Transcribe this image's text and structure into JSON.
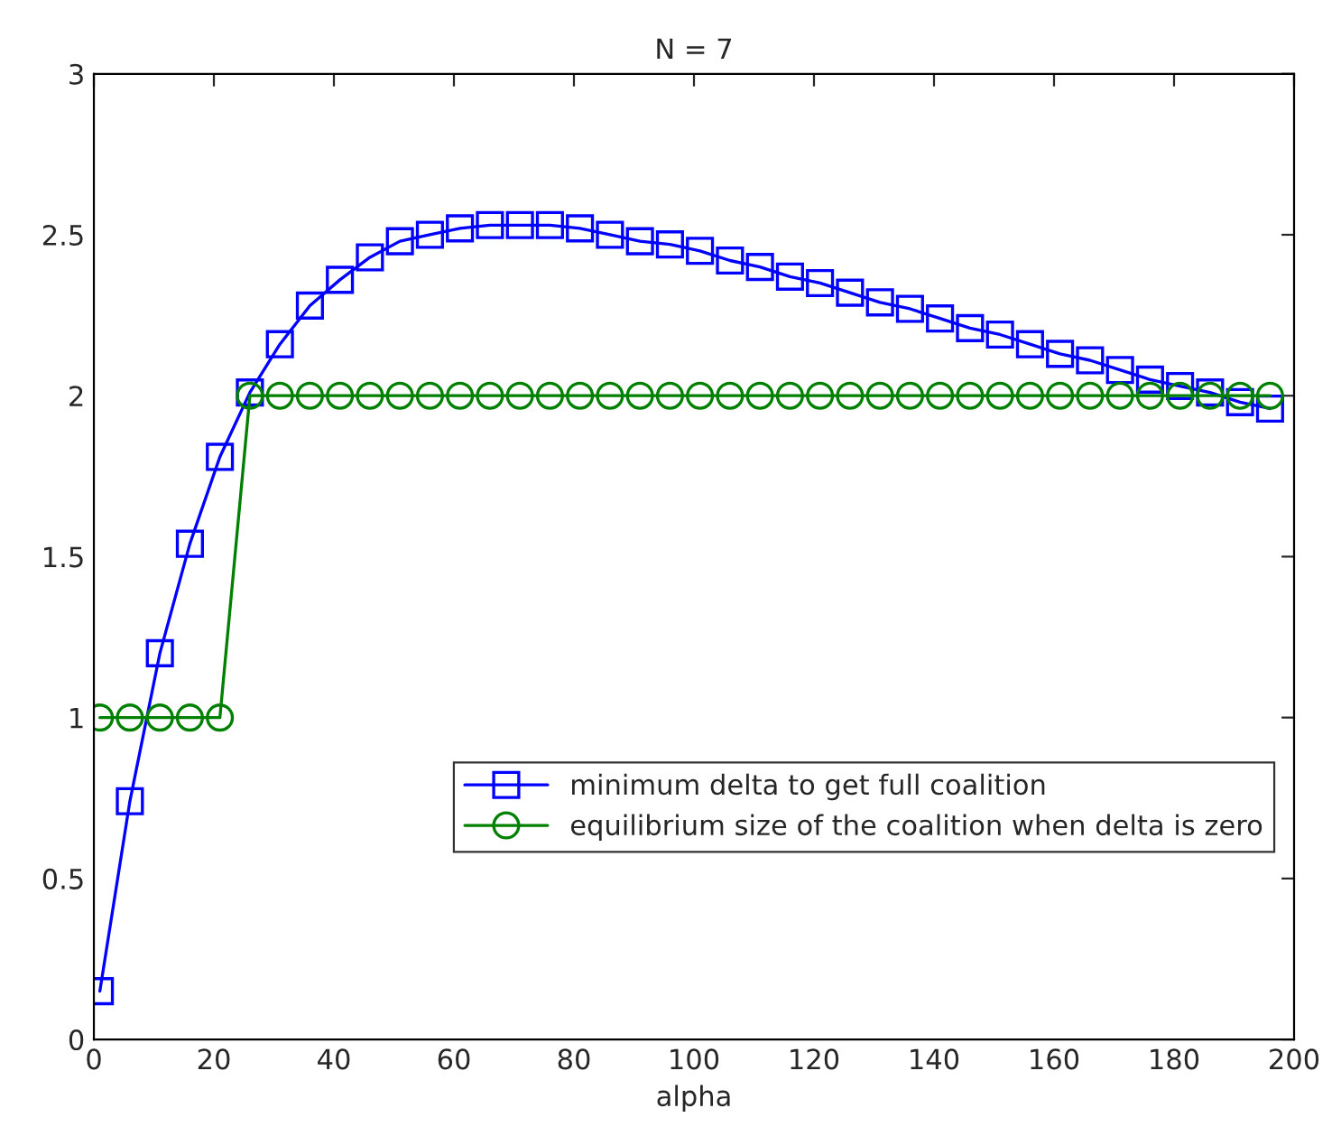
{
  "chart_data": {
    "type": "line",
    "title": "N = 7",
    "xlabel": "alpha",
    "x": [
      1,
      6,
      11,
      16,
      21,
      26,
      31,
      36,
      41,
      46,
      51,
      56,
      61,
      66,
      71,
      76,
      81,
      86,
      91,
      96,
      101,
      106,
      111,
      116,
      121,
      126,
      131,
      136,
      141,
      146,
      151,
      156,
      161,
      166,
      171,
      176,
      181,
      186,
      191,
      196
    ],
    "series": [
      {
        "name": "minimum delta to get full coalition",
        "color": "#0000ff",
        "marker": "square",
        "values": [
          0.15,
          0.74,
          1.2,
          1.54,
          1.81,
          2.01,
          2.16,
          2.28,
          2.36,
          2.43,
          2.48,
          2.5,
          2.52,
          2.53,
          2.53,
          2.53,
          2.52,
          2.5,
          2.48,
          2.47,
          2.45,
          2.42,
          2.4,
          2.37,
          2.35,
          2.32,
          2.29,
          2.27,
          2.24,
          2.21,
          2.19,
          2.16,
          2.13,
          2.11,
          2.08,
          2.05,
          2.03,
          2.01,
          1.98,
          1.96
        ]
      },
      {
        "name": "equilibrium size of the coalition when delta is zero",
        "color": "#008000",
        "marker": "circle",
        "values": [
          1,
          1,
          1,
          1,
          1,
          2,
          2,
          2,
          2,
          2,
          2,
          2,
          2,
          2,
          2,
          2,
          2,
          2,
          2,
          2,
          2,
          2,
          2,
          2,
          2,
          2,
          2,
          2,
          2,
          2,
          2,
          2,
          2,
          2,
          2,
          2,
          2,
          2,
          2,
          2
        ]
      }
    ],
    "xlim": [
      0,
      200
    ],
    "xticks": [
      0,
      20,
      40,
      60,
      80,
      100,
      120,
      140,
      160,
      180,
      200
    ],
    "ylim": [
      0,
      3
    ],
    "yticks": [
      0,
      0.5,
      1,
      1.5,
      2,
      2.5,
      3
    ],
    "grid": false,
    "legend": "lower right",
    "line_style": "solid"
  }
}
